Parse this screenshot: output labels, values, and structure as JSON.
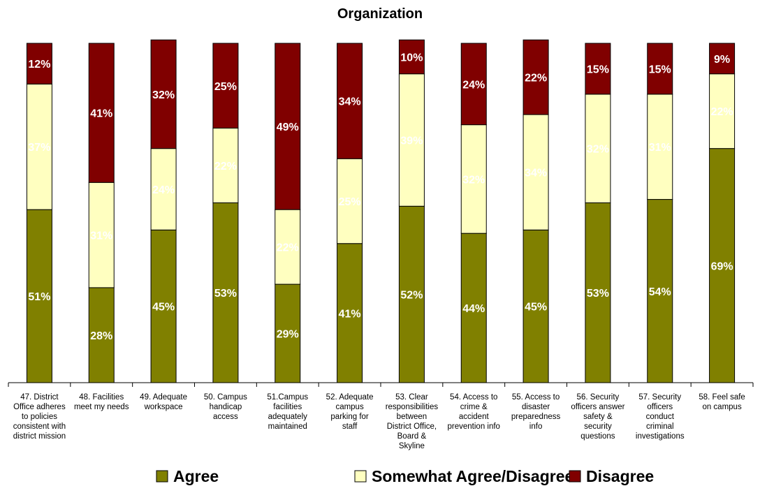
{
  "chart_data": {
    "type": "bar",
    "stacked": true,
    "percent_stacked": true,
    "title": "Organization",
    "xlabel": "",
    "ylabel": "",
    "ylim": [
      0,
      100
    ],
    "grid": false,
    "legend": "bottom",
    "categories": [
      "47. District Office adheres to policies consistent with district mission",
      "48. Facilities meet my needs",
      "49. Adequate workspace",
      "50. Campus handicap access",
      "51.Campus facilities adequately maintained",
      "52. Adequate campus parking for staff",
      "53. Clear responsibilities between District Office, Board & Skyline",
      "54. Access to crime & accident prevention info",
      "55. Access to disaster preparedness info",
      "56. Security officers answer safety & security questions",
      "57. Security officers conduct criminal investigations",
      "58. Feel safe on campus"
    ],
    "category_lines": [
      [
        "47. District",
        "Office adheres",
        "to policies",
        "consistent with",
        "district mission"
      ],
      [
        "48. Facilities",
        "meet my needs"
      ],
      [
        "49. Adequate",
        "workspace"
      ],
      [
        "50. Campus",
        "handicap",
        "access"
      ],
      [
        "51.Campus",
        "facilities",
        "adequately",
        "maintained"
      ],
      [
        "52. Adequate",
        "campus",
        "parking for",
        "staff"
      ],
      [
        "53. Clear",
        "responsibilities",
        "between",
        "District Office,",
        "Board &",
        "Skyline"
      ],
      [
        "54. Access to",
        "crime &",
        "accident",
        "prevention info"
      ],
      [
        "55. Access to",
        "disaster",
        "preparedness",
        "info"
      ],
      [
        "56. Security",
        "officers answer",
        "safety &",
        "security",
        "questions"
      ],
      [
        "57. Security",
        "officers",
        "conduct",
        "criminal",
        "investigations"
      ],
      [
        "58. Feel safe",
        "on campus"
      ]
    ],
    "series": [
      {
        "name": "Agree",
        "color": "#808000",
        "values": [
          51,
          28,
          45,
          53,
          29,
          41,
          52,
          44,
          45,
          53,
          54,
          69
        ]
      },
      {
        "name": "Somewhat Agree/Disagree",
        "color": "#FFFFC0",
        "values": [
          37,
          31,
          24,
          22,
          22,
          25,
          39,
          32,
          34,
          32,
          31,
          22
        ]
      },
      {
        "name": "Disagree",
        "color": "#800000",
        "values": [
          12,
          41,
          32,
          25,
          49,
          34,
          10,
          24,
          22,
          15,
          15,
          9
        ]
      }
    ]
  }
}
